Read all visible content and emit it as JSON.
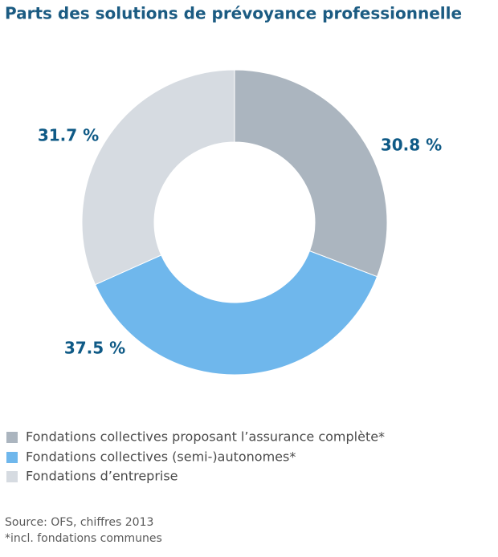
{
  "chart_data": {
    "type": "donut",
    "title": "Parts des solutions de prévoyance professionnelle",
    "categories": [
      "Fondations collectives proposant l’assurance complète*",
      "Fondations collectives (semi-)autonomes*",
      "Fondations d’entreprise"
    ],
    "values": [
      30.8,
      37.5,
      31.7
    ],
    "value_labels": [
      "30.8 %",
      "37.5 %",
      "31.7 %"
    ],
    "colors": [
      "#abb5bf",
      "#6fb7ec",
      "#d6dbe1"
    ],
    "source": "Source: OFS, chiffres 2013",
    "note": "*incl. fondations communes"
  }
}
